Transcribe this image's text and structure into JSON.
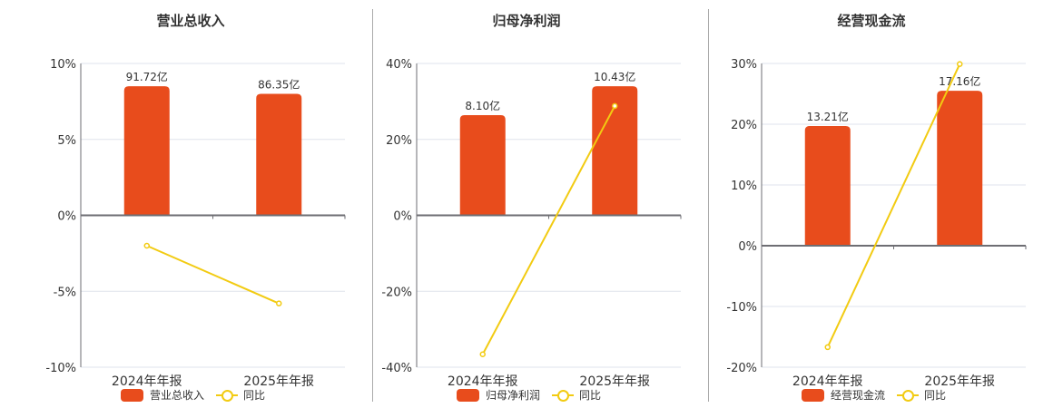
{
  "colors": {
    "bar": "#e84c1c",
    "line": "#f2cb12",
    "grid": "#dfe3ec",
    "axis": "#6e6e73",
    "divider": "#aaaaaa"
  },
  "legend_line_label": "同比",
  "chart_data": [
    {
      "type": "bar+line",
      "title": "营业总收入",
      "categories": [
        "2024年年报",
        "2025年年报"
      ],
      "series": [
        {
          "name": "营业总收入",
          "type": "bar",
          "labels": [
            "91.72亿",
            "86.35亿"
          ],
          "values_yi": [
            91.72,
            86.35
          ],
          "plotted_pct": [
            8.5,
            8.0
          ]
        },
        {
          "name": "同比",
          "type": "line",
          "values": [
            -2.0,
            -5.8
          ]
        }
      ],
      "yticks": [
        "10%",
        "5%",
        "0%",
        "-5%",
        "-10%"
      ],
      "ylim": [
        -10,
        10
      ],
      "grid": true,
      "legend_position": "bottom"
    },
    {
      "type": "bar+line",
      "title": "归母净利润",
      "categories": [
        "2024年年报",
        "2025年年报"
      ],
      "series": [
        {
          "name": "归母净利润",
          "type": "bar",
          "labels": [
            "8.10亿",
            "10.43亿"
          ],
          "values_yi": [
            8.1,
            10.43
          ],
          "plotted_pct": [
            26.4,
            34.0
          ]
        },
        {
          "name": "同比",
          "type": "line",
          "values": [
            -36.6,
            28.8
          ]
        }
      ],
      "yticks": [
        "40%",
        "20%",
        "0%",
        "-20%",
        "-40%"
      ],
      "ylim": [
        -40,
        40
      ],
      "grid": true,
      "legend_position": "bottom"
    },
    {
      "type": "bar+line",
      "title": "经营现金流",
      "categories": [
        "2024年年报",
        "2025年年报"
      ],
      "series": [
        {
          "name": "经营现金流",
          "type": "bar",
          "labels": [
            "13.21亿",
            "17.16亿"
          ],
          "values_yi": [
            13.21,
            17.16
          ],
          "plotted_pct": [
            19.7,
            25.5
          ]
        },
        {
          "name": "同比",
          "type": "line",
          "values": [
            -16.7,
            29.9
          ]
        }
      ],
      "yticks": [
        "30%",
        "20%",
        "10%",
        "0%",
        "-10%",
        "-20%"
      ],
      "ylim": [
        -20,
        30
      ],
      "grid": true,
      "legend_position": "bottom"
    }
  ]
}
